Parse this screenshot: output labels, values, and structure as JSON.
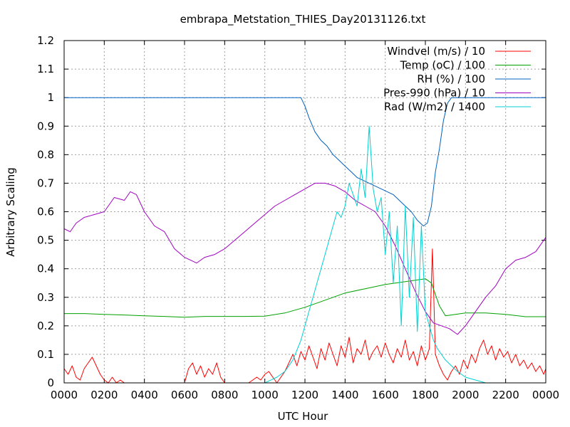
{
  "chart_data": {
    "type": "line",
    "title": "embrapa_Metstation_THIES_Day20131126.txt",
    "xlabel": "UTC Hour",
    "ylabel": "Arbitrary Scaling",
    "xlim": [
      0,
      24
    ],
    "ylim": [
      0,
      1.2
    ],
    "grid": true,
    "legend_position": "top-right",
    "x_ticks": [
      {
        "value": 0,
        "label": "0000"
      },
      {
        "value": 2,
        "label": "0200"
      },
      {
        "value": 4,
        "label": "0400"
      },
      {
        "value": 6,
        "label": "0600"
      },
      {
        "value": 8,
        "label": "0800"
      },
      {
        "value": 10,
        "label": "1000"
      },
      {
        "value": 12,
        "label": "1200"
      },
      {
        "value": 14,
        "label": "1400"
      },
      {
        "value": 16,
        "label": "1600"
      },
      {
        "value": 18,
        "label": "1800"
      },
      {
        "value": 20,
        "label": "2000"
      },
      {
        "value": 22,
        "label": "2200"
      },
      {
        "value": 24,
        "label": "0000"
      }
    ],
    "y_ticks": [
      {
        "value": 0,
        "label": "0"
      },
      {
        "value": 0.1,
        "label": "0.1"
      },
      {
        "value": 0.2,
        "label": "0.2"
      },
      {
        "value": 0.3,
        "label": "0.3"
      },
      {
        "value": 0.4,
        "label": "0.4"
      },
      {
        "value": 0.5,
        "label": "0.5"
      },
      {
        "value": 0.6,
        "label": "0.6"
      },
      {
        "value": 0.7,
        "label": "0.7"
      },
      {
        "value": 0.8,
        "label": "0.8"
      },
      {
        "value": 0.9,
        "label": "0.9"
      },
      {
        "value": 1,
        "label": "1"
      },
      {
        "value": 1.1,
        "label": "1.1"
      },
      {
        "value": 1.2,
        "label": "1.2"
      }
    ],
    "series": [
      {
        "name": "Windvel (m/s) / 10",
        "color": "#ff0000",
        "x": [
          0,
          0.2,
          0.4,
          0.6,
          0.8,
          1.0,
          1.2,
          1.4,
          1.6,
          1.8,
          2.0,
          2.2,
          2.4,
          2.6,
          2.8,
          3.0,
          3.2,
          3.4,
          3.6,
          3.8,
          4.0,
          4.5,
          5.0,
          5.5,
          6.0,
          6.2,
          6.4,
          6.6,
          6.8,
          7.0,
          7.2,
          7.4,
          7.6,
          7.8,
          8.0,
          8.4,
          8.8,
          9.2,
          9.6,
          9.8,
          10.0,
          10.2,
          10.4,
          10.6,
          10.8,
          11.0,
          11.2,
          11.4,
          11.6,
          11.8,
          12.0,
          12.2,
          12.4,
          12.6,
          12.8,
          13.0,
          13.2,
          13.4,
          13.6,
          13.8,
          14.0,
          14.2,
          14.4,
          14.6,
          14.8,
          15.0,
          15.2,
          15.4,
          15.6,
          15.8,
          16.0,
          16.2,
          16.4,
          16.6,
          16.8,
          17.0,
          17.2,
          17.4,
          17.6,
          17.8,
          18.0,
          18.2,
          18.35,
          18.5,
          18.7,
          18.9,
          19.1,
          19.3,
          19.5,
          19.7,
          19.9,
          20.1,
          20.3,
          20.5,
          20.7,
          20.9,
          21.1,
          21.3,
          21.5,
          21.7,
          21.9,
          22.1,
          22.3,
          22.5,
          22.7,
          22.9,
          23.1,
          23.3,
          23.5,
          23.7,
          23.9,
          24.0
        ],
        "values": [
          0.05,
          0.03,
          0.06,
          0.02,
          0.01,
          0.05,
          0.07,
          0.09,
          0.06,
          0.03,
          0.01,
          0.0,
          0.02,
          0.0,
          0.01,
          0.0,
          0.0,
          0.0,
          0.0,
          0.0,
          0.0,
          0.0,
          0.0,
          0.0,
          0.0,
          0.05,
          0.07,
          0.03,
          0.06,
          0.02,
          0.05,
          0.03,
          0.07,
          0.02,
          0.0,
          0.0,
          0.0,
          0.0,
          0.02,
          0.01,
          0.03,
          0.04,
          0.02,
          0.0,
          0.02,
          0.04,
          0.07,
          0.1,
          0.06,
          0.11,
          0.08,
          0.13,
          0.09,
          0.05,
          0.12,
          0.08,
          0.14,
          0.1,
          0.06,
          0.13,
          0.09,
          0.16,
          0.07,
          0.12,
          0.1,
          0.15,
          0.08,
          0.11,
          0.13,
          0.09,
          0.14,
          0.1,
          0.07,
          0.12,
          0.09,
          0.15,
          0.08,
          0.11,
          0.06,
          0.13,
          0.08,
          0.12,
          0.47,
          0.1,
          0.06,
          0.03,
          0.01,
          0.04,
          0.06,
          0.03,
          0.08,
          0.05,
          0.1,
          0.07,
          0.12,
          0.15,
          0.1,
          0.13,
          0.08,
          0.12,
          0.09,
          0.11,
          0.07,
          0.1,
          0.06,
          0.08,
          0.05,
          0.07,
          0.04,
          0.06,
          0.03,
          0.05
        ]
      },
      {
        "name": "Temp (oC) / 100",
        "color": "#00a000",
        "x": [
          0,
          1,
          2,
          3,
          4,
          5,
          6,
          7,
          8,
          9,
          10,
          11,
          12,
          13,
          14,
          15,
          16,
          17,
          17.5,
          18,
          18.3,
          18.7,
          19,
          19.5,
          20,
          21,
          22,
          23,
          24
        ],
        "values": [
          0.243,
          0.243,
          0.24,
          0.238,
          0.235,
          0.233,
          0.23,
          0.233,
          0.233,
          0.233,
          0.234,
          0.245,
          0.265,
          0.29,
          0.315,
          0.33,
          0.345,
          0.355,
          0.36,
          0.365,
          0.35,
          0.27,
          0.235,
          0.24,
          0.245,
          0.245,
          0.24,
          0.232,
          0.232
        ]
      },
      {
        "name": "RH (%) / 100",
        "color": "#0060c0",
        "x": [
          0,
          11.8,
          12.0,
          12.2,
          12.5,
          12.8,
          13.1,
          13.4,
          13.7,
          14.0,
          14.3,
          14.6,
          14.9,
          15.2,
          15.5,
          15.8,
          16.1,
          16.4,
          16.7,
          17.0,
          17.3,
          17.6,
          17.9,
          18.1,
          18.3,
          18.5,
          18.7,
          18.9,
          19.1,
          19.3,
          24.0
        ],
        "values": [
          1.0,
          1.0,
          0.97,
          0.93,
          0.88,
          0.85,
          0.83,
          0.8,
          0.78,
          0.76,
          0.74,
          0.72,
          0.71,
          0.7,
          0.69,
          0.68,
          0.67,
          0.66,
          0.64,
          0.62,
          0.6,
          0.57,
          0.55,
          0.56,
          0.62,
          0.74,
          0.82,
          0.92,
          0.98,
          1.0,
          1.0
        ]
      },
      {
        "name": "Pres-990 (hPa) / 10",
        "color": "#a000c0",
        "x": [
          0,
          0.3,
          0.6,
          1.0,
          1.5,
          2.0,
          2.5,
          3.0,
          3.3,
          3.6,
          4.0,
          4.5,
          5.0,
          5.5,
          6.0,
          6.3,
          6.6,
          7.0,
          7.5,
          8.0,
          8.5,
          9.0,
          9.5,
          10.0,
          10.5,
          11.0,
          11.5,
          12.0,
          12.5,
          13.0,
          13.5,
          14.0,
          14.5,
          15.0,
          15.5,
          16.0,
          16.5,
          17.0,
          17.5,
          18.0,
          18.4,
          18.8,
          19.2,
          19.6,
          20.0,
          20.5,
          21.0,
          21.5,
          22.0,
          22.5,
          23.0,
          23.5,
          24.0
        ],
        "values": [
          0.54,
          0.53,
          0.56,
          0.58,
          0.59,
          0.6,
          0.65,
          0.64,
          0.67,
          0.66,
          0.6,
          0.55,
          0.53,
          0.47,
          0.44,
          0.43,
          0.42,
          0.44,
          0.45,
          0.47,
          0.5,
          0.53,
          0.56,
          0.59,
          0.62,
          0.64,
          0.66,
          0.68,
          0.7,
          0.7,
          0.69,
          0.67,
          0.64,
          0.62,
          0.6,
          0.55,
          0.48,
          0.4,
          0.32,
          0.25,
          0.21,
          0.2,
          0.19,
          0.17,
          0.2,
          0.25,
          0.3,
          0.34,
          0.4,
          0.43,
          0.44,
          0.46,
          0.51
        ]
      },
      {
        "name": "Rad (W/m2) / 1400",
        "color": "#00d0d0",
        "x": [
          0,
          10.0,
          10.6,
          11.0,
          11.4,
          11.8,
          12.0,
          12.2,
          12.4,
          12.6,
          12.8,
          13.0,
          13.2,
          13.4,
          13.6,
          13.8,
          14.0,
          14.2,
          14.4,
          14.6,
          14.8,
          15.0,
          15.2,
          15.4,
          15.6,
          15.8,
          16.0,
          16.2,
          16.4,
          16.6,
          16.8,
          17.0,
          17.2,
          17.4,
          17.6,
          17.8,
          18.0,
          18.2,
          18.4,
          18.6,
          18.8,
          19.0,
          19.3,
          19.6,
          20.0,
          20.5,
          21.0,
          24.0
        ],
        "values": [
          0.0,
          0.0,
          0.02,
          0.04,
          0.08,
          0.15,
          0.2,
          0.25,
          0.3,
          0.35,
          0.4,
          0.45,
          0.5,
          0.55,
          0.6,
          0.58,
          0.62,
          0.7,
          0.66,
          0.62,
          0.75,
          0.65,
          0.9,
          0.68,
          0.6,
          0.65,
          0.45,
          0.6,
          0.35,
          0.55,
          0.2,
          0.62,
          0.3,
          0.58,
          0.18,
          0.55,
          0.25,
          0.2,
          0.15,
          0.12,
          0.1,
          0.08,
          0.06,
          0.04,
          0.02,
          0.01,
          0.0,
          0.0
        ]
      }
    ]
  }
}
